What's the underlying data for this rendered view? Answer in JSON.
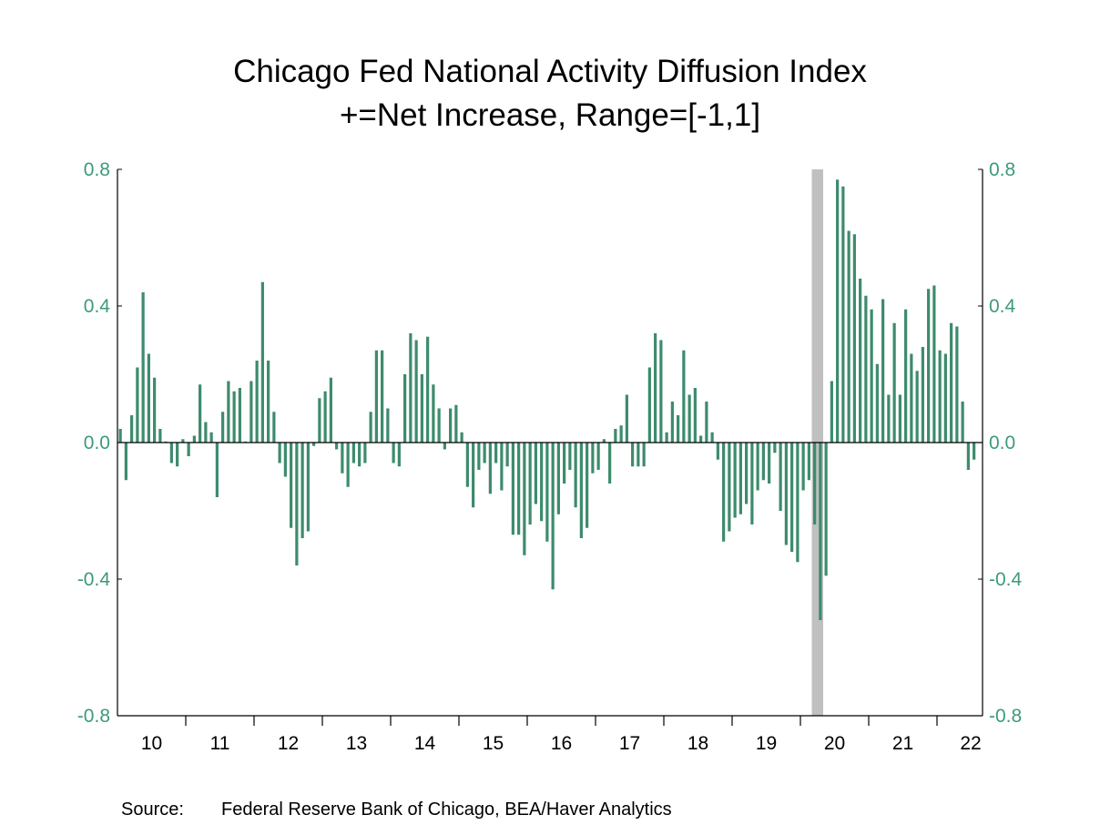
{
  "chart_data": {
    "type": "bar",
    "title": "Chicago Fed National Activity Diffusion Index",
    "subtitle": "+=Net Increase, Range=[-1,1]",
    "xlabel": "",
    "ylabel": "",
    "ylim": [
      -0.8,
      0.8
    ],
    "y_ticks": [
      "0.8",
      "0.4",
      "0.0",
      "-0.4",
      "-0.8"
    ],
    "y_tick_values": [
      0.8,
      0.4,
      0.0,
      -0.4,
      -0.8
    ],
    "x_tick_labels": [
      "10",
      "11",
      "12",
      "13",
      "14",
      "15",
      "16",
      "17",
      "18",
      "19",
      "20",
      "21",
      "22"
    ],
    "frequency": "monthly",
    "x": [
      "2010-01",
      "2010-02",
      "2010-03",
      "2010-04",
      "2010-05",
      "2010-06",
      "2010-07",
      "2010-08",
      "2010-09",
      "2010-10",
      "2010-11",
      "2010-12",
      "2011-01",
      "2011-02",
      "2011-03",
      "2011-04",
      "2011-05",
      "2011-06",
      "2011-07",
      "2011-08",
      "2011-09",
      "2011-10",
      "2011-11",
      "2011-12",
      "2012-01",
      "2012-02",
      "2012-03",
      "2012-04",
      "2012-05",
      "2012-06",
      "2012-07",
      "2012-08",
      "2012-09",
      "2012-10",
      "2012-11",
      "2012-12",
      "2013-01",
      "2013-02",
      "2013-03",
      "2013-04",
      "2013-05",
      "2013-06",
      "2013-07",
      "2013-08",
      "2013-09",
      "2013-10",
      "2013-11",
      "2013-12",
      "2014-01",
      "2014-02",
      "2014-03",
      "2014-04",
      "2014-05",
      "2014-06",
      "2014-07",
      "2014-08",
      "2014-09",
      "2014-10",
      "2014-11",
      "2014-12",
      "2015-01",
      "2015-02",
      "2015-03",
      "2015-04",
      "2015-05",
      "2015-06",
      "2015-07",
      "2015-08",
      "2015-09",
      "2015-10",
      "2015-11",
      "2015-12",
      "2016-01",
      "2016-02",
      "2016-03",
      "2016-04",
      "2016-05",
      "2016-06",
      "2016-07",
      "2016-08",
      "2016-09",
      "2016-10",
      "2016-11",
      "2016-12",
      "2017-01",
      "2017-02",
      "2017-03",
      "2017-04",
      "2017-05",
      "2017-06",
      "2017-07",
      "2017-08",
      "2017-09",
      "2017-10",
      "2017-11",
      "2017-12",
      "2018-01",
      "2018-02",
      "2018-03",
      "2018-04",
      "2018-05",
      "2018-06",
      "2018-07",
      "2018-08",
      "2018-09",
      "2018-10",
      "2018-11",
      "2018-12",
      "2019-01",
      "2019-02",
      "2019-03",
      "2019-04",
      "2019-05",
      "2019-06",
      "2019-07",
      "2019-08",
      "2019-09",
      "2019-10",
      "2019-11",
      "2019-12",
      "2020-01",
      "2020-02",
      "2020-03",
      "2020-04",
      "2020-05",
      "2020-06",
      "2020-07",
      "2020-08",
      "2020-09",
      "2020-10",
      "2020-11",
      "2020-12",
      "2021-01",
      "2021-02",
      "2021-03",
      "2021-04",
      "2021-05",
      "2021-06",
      "2021-07",
      "2021-08",
      "2021-09",
      "2021-10",
      "2021-11",
      "2021-12",
      "2022-01",
      "2022-02",
      "2022-03",
      "2022-04",
      "2022-05",
      "2022-06",
      "2022-07"
    ],
    "values": [
      0.04,
      -0.11,
      0.08,
      0.22,
      0.44,
      0.26,
      0.19,
      0.04,
      0.003,
      -0.06,
      -0.07,
      0.01,
      -0.04,
      0.02,
      0.17,
      0.06,
      0.03,
      -0.16,
      0.09,
      0.18,
      0.15,
      0.16,
      0.003,
      0.18,
      0.24,
      0.47,
      0.24,
      0.09,
      -0.06,
      -0.1,
      -0.25,
      -0.36,
      -0.28,
      -0.26,
      -0.01,
      0.13,
      0.15,
      0.19,
      -0.02,
      -0.09,
      -0.13,
      -0.06,
      -0.07,
      -0.06,
      0.09,
      0.27,
      0.27,
      0.1,
      -0.06,
      -0.07,
      0.2,
      0.32,
      0.3,
      0.2,
      0.31,
      0.17,
      0.1,
      -0.02,
      0.1,
      0.11,
      0.03,
      -0.13,
      -0.19,
      -0.08,
      -0.06,
      -0.15,
      -0.06,
      -0.14,
      -0.07,
      -0.27,
      -0.27,
      -0.33,
      -0.24,
      -0.18,
      -0.23,
      -0.29,
      -0.43,
      -0.21,
      -0.12,
      -0.08,
      -0.19,
      -0.28,
      -0.25,
      -0.09,
      -0.08,
      0.01,
      -0.12,
      0.04,
      0.05,
      0.14,
      -0.07,
      -0.07,
      -0.07,
      0.22,
      0.32,
      0.3,
      0.03,
      0.12,
      0.08,
      0.27,
      0.14,
      0.16,
      0.02,
      0.12,
      0.03,
      -0.05,
      -0.29,
      -0.26,
      -0.22,
      -0.21,
      -0.18,
      -0.24,
      -0.14,
      -0.11,
      -0.12,
      -0.03,
      -0.2,
      -0.3,
      -0.32,
      -0.35,
      -0.14,
      -0.11,
      -0.24,
      -0.52,
      -0.39,
      0.18,
      0.77,
      0.75,
      0.62,
      0.61,
      0.48,
      0.43,
      0.39,
      0.23,
      0.42,
      0.14,
      0.35,
      0.14,
      0.39,
      0.26,
      0.21,
      0.28,
      0.45,
      0.46,
      0.27,
      0.26,
      0.35,
      0.34,
      0.12,
      -0.08,
      -0.05
    ],
    "recession_shading": [
      "2020-03",
      "2020-04"
    ],
    "grid": false,
    "legend": "none",
    "colors": {
      "bars": "#3d8b6d",
      "axis_labels": "#3d9a78",
      "recession": "#c0c0c0"
    }
  },
  "footer": {
    "source_label": "Source:",
    "source_text": "Federal Reserve Bank of Chicago, BEA/Haver Analytics"
  }
}
